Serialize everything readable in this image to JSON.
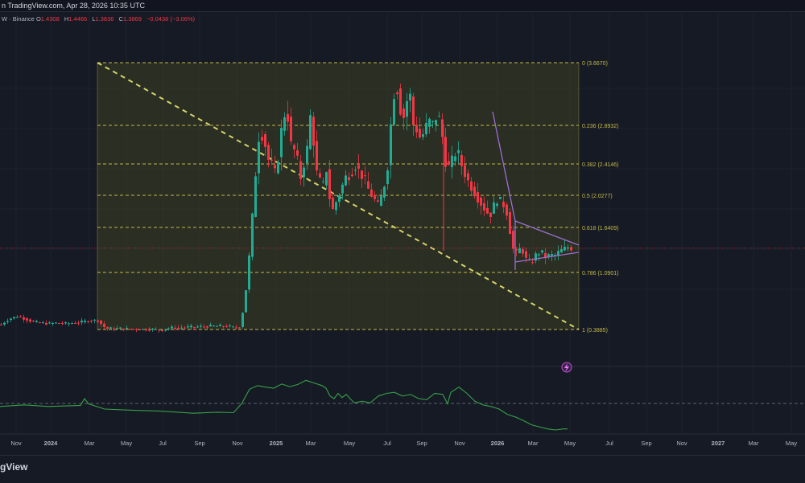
{
  "header": {
    "caption": "n TradingView.com, Apr 28, 2026 10:35 UTC"
  },
  "legend": {
    "symbol": "W · Binance",
    "open_label": "O",
    "open": "1.4308",
    "high_label": "H",
    "high": "1.4466",
    "low_label": "L",
    "low": "1.3836",
    "close_label": "C",
    "close": "1.3869",
    "change": "−0.0438 (−3.06%)"
  },
  "fib_levels": [
    {
      "ratio": "0",
      "price": "3.6670",
      "label": "0 (3.6670)"
    },
    {
      "ratio": "0.236",
      "price": "2.8932",
      "label": "0.236 (2.8932)"
    },
    {
      "ratio": "0.382",
      "price": "2.4146",
      "label": "0.382 (2.4146)"
    },
    {
      "ratio": "0.5",
      "price": "2.0277",
      "label": "0.5 (2.0277)"
    },
    {
      "ratio": "0.618",
      "price": "1.6409",
      "label": "0.618 (1.6409)"
    },
    {
      "ratio": "0.786",
      "price": "1.0901",
      "label": "0.786 (1.0901)"
    },
    {
      "ratio": "1",
      "price": "0.3885",
      "label": "1 (0.3885)"
    }
  ],
  "time_axis": [
    "Nov",
    "2024",
    "Mar",
    "May",
    "Jul",
    "Sep",
    "Nov",
    "2025",
    "Mar",
    "May",
    "Jul",
    "Sep",
    "Nov",
    "2026",
    "Mar",
    "May",
    "Jul",
    "Sep",
    "Nov",
    "2027",
    "Mar",
    "May"
  ],
  "bold_time_labels": [
    "2024",
    "2025",
    "2026",
    "2027"
  ],
  "price_path": [
    [
      0,
      0.45
    ],
    [
      4,
      0.48
    ],
    [
      10,
      0.52
    ],
    [
      20,
      0.55
    ],
    [
      30,
      0.52
    ],
    [
      40,
      0.48
    ],
    [
      50,
      0.47
    ],
    [
      60,
      0.46
    ],
    [
      70,
      0.47
    ],
    [
      80,
      0.46
    ],
    [
      90,
      0.47
    ],
    [
      100,
      0.48
    ],
    [
      110,
      0.5
    ],
    [
      120,
      0.5
    ],
    [
      130,
      0.4
    ],
    [
      150,
      0.4
    ],
    [
      170,
      0.39
    ],
    [
      185,
      0.39
    ],
    [
      200,
      0.38
    ],
    [
      210,
      0.41
    ],
    [
      220,
      0.41
    ],
    [
      240,
      0.42
    ],
    [
      260,
      0.43
    ],
    [
      280,
      0.43
    ],
    [
      290,
      0.41
    ],
    [
      296,
      0.42
    ],
    [
      300,
      0.6
    ],
    [
      305,
      0.95
    ],
    [
      310,
      1.5
    ],
    [
      316,
      2.3
    ],
    [
      320,
      2.75
    ],
    [
      326,
      2.8
    ],
    [
      330,
      2.5
    ],
    [
      336,
      2.4
    ],
    [
      340,
      2.3
    ],
    [
      346,
      2.6
    ],
    [
      350,
      3.05
    ],
    [
      356,
      3.0
    ],
    [
      360,
      2.65
    ],
    [
      366,
      2.55
    ],
    [
      372,
      2.25
    ],
    [
      380,
      2.6
    ],
    [
      384,
      3.0
    ],
    [
      388,
      2.7
    ],
    [
      392,
      2.3
    ],
    [
      396,
      2.2
    ],
    [
      400,
      2.15
    ],
    [
      404,
      2.35
    ],
    [
      408,
      2.0
    ],
    [
      412,
      1.85
    ],
    [
      416,
      1.95
    ],
    [
      422,
      2.1
    ],
    [
      428,
      2.25
    ],
    [
      434,
      2.3
    ],
    [
      440,
      2.4
    ],
    [
      446,
      2.3
    ],
    [
      450,
      2.25
    ],
    [
      456,
      2.1
    ],
    [
      462,
      2.0
    ],
    [
      468,
      1.9
    ],
    [
      474,
      2.05
    ],
    [
      480,
      2.4
    ],
    [
      484,
      2.9
    ],
    [
      488,
      3.3
    ],
    [
      492,
      3.35
    ],
    [
      496,
      3.1
    ],
    [
      500,
      3.0
    ],
    [
      504,
      3.2
    ],
    [
      508,
      3.25
    ],
    [
      512,
      2.9
    ],
    [
      516,
      2.85
    ],
    [
      520,
      2.75
    ],
    [
      526,
      2.8
    ],
    [
      530,
      2.95
    ],
    [
      536,
      2.9
    ],
    [
      540,
      3.0
    ],
    [
      546,
      2.95
    ],
    [
      550,
      2.55
    ],
    [
      554,
      2.35
    ],
    [
      558,
      2.4
    ],
    [
      562,
      2.5
    ],
    [
      566,
      2.6
    ],
    [
      570,
      2.45
    ],
    [
      574,
      2.35
    ],
    [
      580,
      2.2
    ],
    [
      586,
      2.1
    ],
    [
      592,
      2.0
    ],
    [
      598,
      1.9
    ],
    [
      604,
      1.82
    ],
    [
      610,
      1.8
    ],
    [
      614,
      2.0
    ],
    [
      620,
      1.95
    ],
    [
      626,
      1.9
    ],
    [
      630,
      1.75
    ],
    [
      634,
      1.45
    ],
    [
      638,
      1.3
    ],
    [
      642,
      1.35
    ],
    [
      646,
      1.4
    ],
    [
      652,
      1.25
    ],
    [
      658,
      1.2
    ],
    [
      664,
      1.3
    ],
    [
      670,
      1.35
    ],
    [
      676,
      1.28
    ],
    [
      682,
      1.3
    ],
    [
      688,
      1.3
    ],
    [
      694,
      1.35
    ],
    [
      700,
      1.38
    ],
    [
      704,
      1.4
    ],
    [
      708,
      1.39
    ]
  ],
  "rsi_path": [
    [
      0,
      0.45
    ],
    [
      30,
      0.48
    ],
    [
      60,
      0.45
    ],
    [
      100,
      0.47
    ],
    [
      105,
      0.6
    ],
    [
      110,
      0.5
    ],
    [
      130,
      0.4
    ],
    [
      160,
      0.38
    ],
    [
      200,
      0.36
    ],
    [
      240,
      0.32
    ],
    [
      270,
      0.34
    ],
    [
      290,
      0.33
    ],
    [
      300,
      0.5
    ],
    [
      310,
      0.78
    ],
    [
      320,
      0.85
    ],
    [
      330,
      0.82
    ],
    [
      340,
      0.8
    ],
    [
      350,
      0.88
    ],
    [
      360,
      0.83
    ],
    [
      370,
      0.87
    ],
    [
      380,
      0.95
    ],
    [
      390,
      0.9
    ],
    [
      400,
      0.85
    ],
    [
      405,
      0.8
    ],
    [
      410,
      0.65
    ],
    [
      415,
      0.6
    ],
    [
      420,
      0.7
    ],
    [
      425,
      0.62
    ],
    [
      430,
      0.68
    ],
    [
      440,
      0.52
    ],
    [
      450,
      0.55
    ],
    [
      460,
      0.52
    ],
    [
      470,
      0.65
    ],
    [
      480,
      0.7
    ],
    [
      490,
      0.72
    ],
    [
      500,
      0.65
    ],
    [
      510,
      0.68
    ],
    [
      520,
      0.6
    ],
    [
      530,
      0.58
    ],
    [
      540,
      0.7
    ],
    [
      550,
      0.68
    ],
    [
      556,
      0.5
    ],
    [
      560,
      0.72
    ],
    [
      570,
      0.82
    ],
    [
      580,
      0.7
    ],
    [
      590,
      0.55
    ],
    [
      600,
      0.48
    ],
    [
      610,
      0.45
    ],
    [
      620,
      0.4
    ],
    [
      630,
      0.3
    ],
    [
      640,
      0.25
    ],
    [
      650,
      0.18
    ],
    [
      660,
      0.1
    ],
    [
      670,
      0.06
    ],
    [
      680,
      0.02
    ],
    [
      690,
      0.0
    ],
    [
      700,
      0.02
    ],
    [
      705,
      0.02
    ]
  ],
  "colors": {
    "background": "#161a25",
    "bull": "#22ab94",
    "bear": "#f23645",
    "fib": "#c4b948",
    "zone": "#3c3f22",
    "triangle": "#9c6fd2",
    "rsi_line": "#37a047",
    "grid": "#1e222d"
  },
  "icons": {
    "flash_marker": "lightning-icon"
  },
  "footer": {
    "brand": "gView"
  }
}
